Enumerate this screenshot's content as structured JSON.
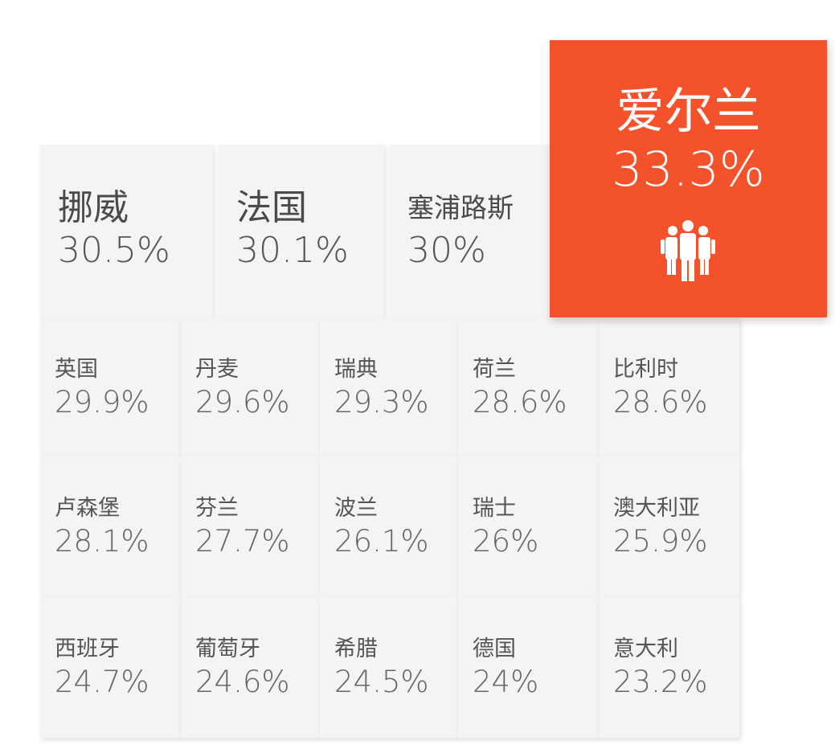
{
  "highlight": {
    "name": "爱尔兰",
    "value": "33.3%"
  },
  "top": [
    {
      "name": "挪威",
      "value": "30.5%"
    },
    {
      "name": "法国",
      "value": "30.1%"
    },
    {
      "name": "塞浦路斯",
      "value": "30%"
    }
  ],
  "rows": [
    [
      {
        "name": "英国",
        "value": "29.9%"
      },
      {
        "name": "丹麦",
        "value": "29.6%"
      },
      {
        "name": "瑞典",
        "value": "29.3%"
      },
      {
        "name": "荷兰",
        "value": "28.6%"
      },
      {
        "name": "比利时",
        "value": "28.6%"
      }
    ],
    [
      {
        "name": "卢森堡",
        "value": "28.1%"
      },
      {
        "name": "芬兰",
        "value": "27.7%"
      },
      {
        "name": "波兰",
        "value": "26.1%"
      },
      {
        "name": "瑞士",
        "value": "26%"
      },
      {
        "name": "澳大利亚",
        "value": "25.9%"
      }
    ],
    [
      {
        "name": "西班牙",
        "value": "24.7%"
      },
      {
        "name": "葡萄牙",
        "value": "24.6%"
      },
      {
        "name": "希腊",
        "value": "24.5%"
      },
      {
        "name": "德国",
        "value": "24%"
      },
      {
        "name": "意大利",
        "value": "23.2%"
      }
    ]
  ]
}
